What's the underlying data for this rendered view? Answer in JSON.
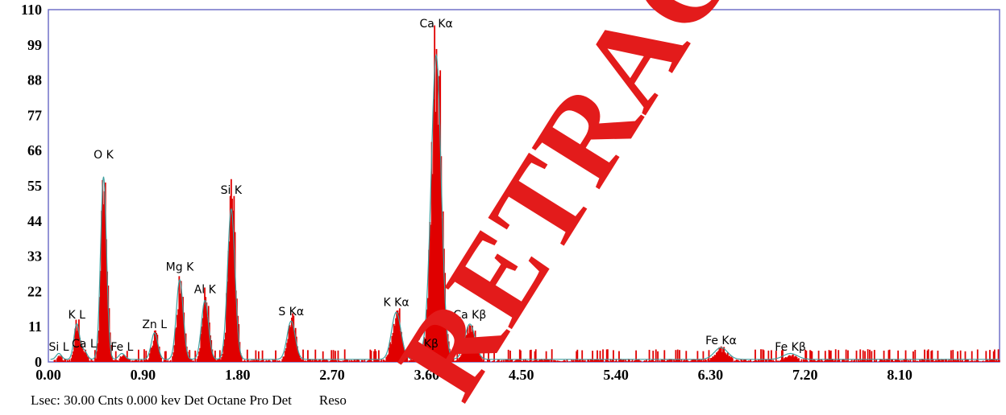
{
  "chart_data": {
    "type": "bar",
    "title": "",
    "xlabel": "",
    "ylabel": "",
    "xlim": [
      0,
      9.05
    ],
    "ylim": [
      0,
      110
    ],
    "x_ticks": [
      0.0,
      0.9,
      1.8,
      2.7,
      3.6,
      4.5,
      5.4,
      6.3,
      7.2,
      8.1
    ],
    "x_tick_labels": [
      "0.00",
      "0.90",
      "1.80",
      "2.70",
      "3.60",
      "4.50",
      "5.40",
      "6.30",
      "7.20",
      "8.10"
    ],
    "y_ticks": [
      0,
      11,
      22,
      33,
      44,
      55,
      66,
      77,
      88,
      99,
      110
    ],
    "y_tick_labels": [
      "0",
      "11",
      "22",
      "33",
      "44",
      "55",
      "66",
      "77",
      "88",
      "99",
      "110"
    ],
    "grid": false,
    "colors": {
      "spectrum": "#e00000",
      "fit_line": "#3fa0a0",
      "frame": "#7070c8",
      "stamp": "#e31b1b"
    },
    "peaks": [
      {
        "label": "Si L",
        "energy": 0.1,
        "height": 2
      },
      {
        "label": "K  L",
        "energy": 0.27,
        "height": 12
      },
      {
        "label": "Ca L",
        "energy": 0.34,
        "height": 3
      },
      {
        "label": "O  K",
        "energy": 0.525,
        "height": 62
      },
      {
        "label": "Fe L",
        "energy": 0.7,
        "height": 2
      },
      {
        "label": "Zn L",
        "energy": 1.01,
        "height": 9
      },
      {
        "label": "Mg K",
        "energy": 1.25,
        "height": 27
      },
      {
        "label": "Al K",
        "energy": 1.49,
        "height": 20
      },
      {
        "label": "Si K",
        "energy": 1.74,
        "height": 51
      },
      {
        "label": "S  Kα",
        "energy": 2.31,
        "height": 13
      },
      {
        "label": "K  Kα",
        "energy": 3.31,
        "height": 16
      },
      {
        "label": "Ca Kα",
        "energy": 3.69,
        "height": 103
      },
      {
        "label": "K  Kβ",
        "energy": 3.59,
        "height": 3
      },
      {
        "label": "Ca Kβ",
        "energy": 4.01,
        "height": 12
      },
      {
        "label": "Fe Kα",
        "energy": 6.4,
        "height": 4
      },
      {
        "label": "Fe Kβ",
        "energy": 7.06,
        "height": 2
      }
    ]
  },
  "footer": {
    "status_text": "Lsec: 30.00 Cnts 0.000 kev Det Octane Pro Det",
    "reso_label": "Reso"
  },
  "stamp": {
    "text": "RETRACTED"
  }
}
